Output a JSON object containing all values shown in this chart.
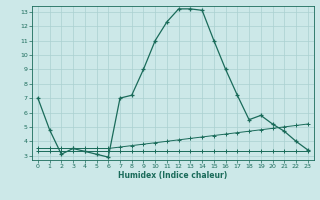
{
  "title": "",
  "xlabel": "Humidex (Indice chaleur)",
  "bg_color": "#cce8e8",
  "line_color": "#1a6b5a",
  "grid_color": "#aad0d0",
  "xlim": [
    -0.5,
    23.5
  ],
  "ylim": [
    2.7,
    13.4
  ],
  "xticks": [
    0,
    1,
    2,
    3,
    4,
    5,
    6,
    7,
    8,
    9,
    10,
    11,
    12,
    13,
    14,
    15,
    16,
    17,
    18,
    19,
    20,
    21,
    22,
    23
  ],
  "yticks": [
    3,
    4,
    5,
    6,
    7,
    8,
    9,
    10,
    11,
    12,
    13
  ],
  "line1_x": [
    0,
    1,
    2,
    3,
    4,
    5,
    6,
    7,
    8,
    9,
    10,
    11,
    12,
    13,
    14,
    15,
    16,
    17,
    18,
    19,
    20,
    21,
    22,
    23
  ],
  "line1_y": [
    7.0,
    4.8,
    3.1,
    3.5,
    3.3,
    3.1,
    2.9,
    7.0,
    7.2,
    9.0,
    11.0,
    12.3,
    13.2,
    13.2,
    13.1,
    11.0,
    9.0,
    7.2,
    5.5,
    5.8,
    5.2,
    4.7,
    4.0,
    3.4
  ],
  "line2_x": [
    0,
    1,
    2,
    3,
    4,
    5,
    6,
    7,
    8,
    9,
    10,
    11,
    12,
    13,
    14,
    15,
    16,
    17,
    18,
    19,
    20,
    21,
    22,
    23
  ],
  "line2_y": [
    3.5,
    3.5,
    3.5,
    3.5,
    3.5,
    3.5,
    3.5,
    3.6,
    3.7,
    3.8,
    3.9,
    4.0,
    4.1,
    4.2,
    4.3,
    4.4,
    4.5,
    4.6,
    4.7,
    4.8,
    4.9,
    5.0,
    5.1,
    5.2
  ],
  "line3_x": [
    0,
    1,
    2,
    3,
    4,
    5,
    6,
    7,
    8,
    9,
    10,
    11,
    12,
    13,
    14,
    15,
    16,
    17,
    18,
    19,
    20,
    21,
    22,
    23
  ],
  "line3_y": [
    3.3,
    3.3,
    3.3,
    3.3,
    3.3,
    3.3,
    3.3,
    3.3,
    3.3,
    3.3,
    3.3,
    3.3,
    3.3,
    3.3,
    3.3,
    3.3,
    3.3,
    3.3,
    3.3,
    3.3,
    3.3,
    3.3,
    3.3,
    3.3
  ]
}
